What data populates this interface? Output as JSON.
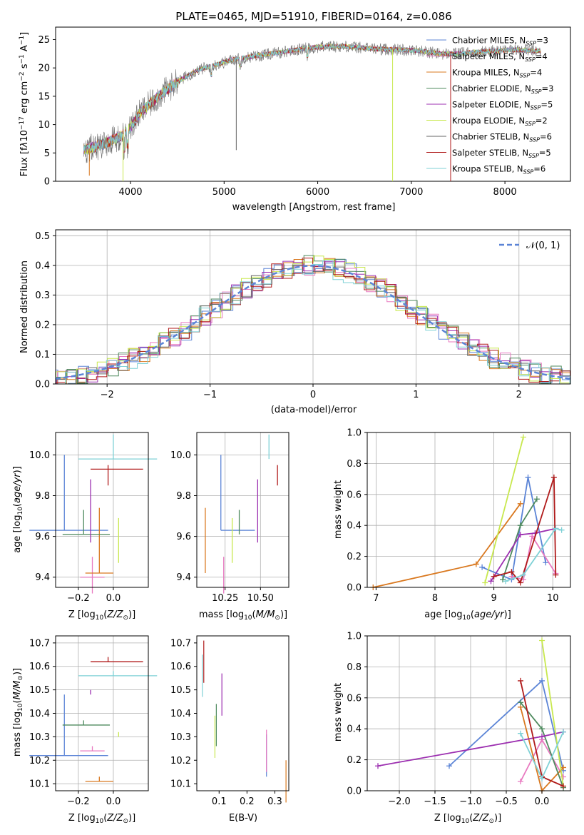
{
  "chart_data": [
    {
      "id": "spectrum",
      "type": "line",
      "title": "PLATE=0465, MJD=51910, FIBERID=0164, z=0.086",
      "xlabel": "wavelength [Angstrom, rest frame]",
      "ylabel": "Flux [fλ10⁻¹⁷ erg cm⁻² s⁻¹ A⁻¹]",
      "xlim": [
        3200,
        8700
      ],
      "ylim": [
        0,
        27.2
      ],
      "xticks": [
        4000,
        5000,
        6000,
        7000,
        8000
      ],
      "yticks": [
        0,
        5,
        10,
        15,
        20,
        25
      ],
      "grid": false,
      "legend_position": "top-right",
      "series": [
        {
          "name": "Chabrier MILES, N_SSP=3",
          "color": "#5b84d6"
        },
        {
          "name": "Salpeter MILES, N_SSP=4",
          "color": "#e879c0"
        },
        {
          "name": "Kroupa MILES, N_SSP=4",
          "color": "#d9781f"
        },
        {
          "name": "Chabrier ELODIE, N_SSP=3",
          "color": "#4e8a5e"
        },
        {
          "name": "Salpeter ELODIE, N_SSP=5",
          "color": "#9c2fb0"
        },
        {
          "name": "Kroupa ELODIE, N_SSP=2",
          "color": "#c8e84e"
        },
        {
          "name": "Chabrier STELIB, N_SSP=6",
          "color": "#666666"
        },
        {
          "name": "Salpeter STELIB, N_SSP=5",
          "color": "#b01a1a"
        },
        {
          "name": "Kroupa STELIB, N_SSP=6",
          "color": "#7fd1d6"
        }
      ],
      "continuum": {
        "x": [
          3500,
          3700,
          3900,
          4000,
          4100,
          4300,
          4500,
          4700,
          4900,
          5100,
          5300,
          5500,
          5700,
          5900,
          6100,
          6300,
          6500,
          6700,
          6900,
          7100,
          7300,
          7500,
          7700,
          7900,
          8100,
          8300
        ],
        "y": [
          5.5,
          6.5,
          8.0,
          9.5,
          12.0,
          15.0,
          17.5,
          19.5,
          20.5,
          21.5,
          22.0,
          22.5,
          23.0,
          23.5,
          23.8,
          23.8,
          23.5,
          23.3,
          23.2,
          23.0,
          22.5,
          22.5,
          22.8,
          23.0,
          23.2,
          23.0
        ]
      }
    },
    {
      "id": "residuals",
      "type": "histogram",
      "xlabel": "(data-model)/error",
      "ylabel": "Normed distribution",
      "xlim": [
        -2.5,
        2.5
      ],
      "ylim": [
        0,
        0.52
      ],
      "xticks": [
        -2,
        -1,
        0,
        1,
        2
      ],
      "yticks": [
        0.0,
        0.1,
        0.2,
        0.3,
        0.4,
        0.5
      ],
      "grid": true,
      "legend_position": "top-right",
      "legend": "𝒩(0, 1)"
    },
    {
      "id": "age-vs-Z",
      "type": "scatter",
      "xlabel": "Z [log₁₀(Z/Z☉)]",
      "ylabel": "age  [log₁₀(age/yr)]",
      "xlim": [
        -0.33,
        0.2
      ],
      "ylim": [
        9.35,
        10.11
      ],
      "xticks": [
        -0.2,
        0.0
      ],
      "yticks": [
        9.4,
        9.6,
        9.8,
        10.0
      ],
      "grid": true
    },
    {
      "id": "age-vs-mass",
      "type": "scatter",
      "xlabel": "mass [log₁₀(M/M☉)]",
      "xlim": [
        10.05,
        10.7
      ],
      "ylim": [
        9.35,
        10.11
      ],
      "xticks": [
        10.25,
        10.5
      ],
      "yticks": [
        9.4,
        9.6,
        9.8,
        10.0
      ],
      "grid": true
    },
    {
      "id": "weight-vs-age",
      "type": "line",
      "xlabel": "age  [log₁₀(age/yr)]",
      "ylabel": "mass weight",
      "xlim": [
        6.85,
        10.3
      ],
      "ylim": [
        0,
        1.0
      ],
      "xticks": [
        7,
        8,
        9,
        10
      ],
      "yticks": [
        0.0,
        0.2,
        0.4,
        0.6,
        0.8,
        1.0
      ],
      "grid": true
    },
    {
      "id": "mass-vs-Z",
      "type": "scatter",
      "xlabel": "Z [log₁₀(Z/Z☉)]",
      "ylabel": "mass [log₁₀(M/M☉)]",
      "xlim": [
        -0.33,
        0.2
      ],
      "ylim": [
        10.07,
        10.73
      ],
      "xticks": [
        -0.2,
        0.0
      ],
      "yticks": [
        10.1,
        10.2,
        10.3,
        10.4,
        10.5,
        10.6,
        10.7
      ],
      "grid": true
    },
    {
      "id": "mass-vs-ebv",
      "type": "scatter",
      "xlabel": "E(B-V)",
      "xlim": [
        0.02,
        0.35
      ],
      "ylim": [
        10.07,
        10.73
      ],
      "xticks": [
        0.1,
        0.2,
        0.3
      ],
      "yticks": [
        10.1,
        10.2,
        10.3,
        10.4,
        10.5,
        10.6,
        10.7
      ],
      "grid": false
    },
    {
      "id": "weight-vs-Z",
      "type": "line",
      "xlabel": "Z [log₁₀(Z/Z☉)]",
      "ylabel": "mass weight",
      "xlim": [
        -2.45,
        0.4
      ],
      "ylim": [
        0,
        1.0
      ],
      "xticks": [
        -2.0,
        -1.5,
        -1.0,
        -0.5,
        0.0
      ],
      "yticks": [
        0.0,
        0.2,
        0.4,
        0.6,
        0.8,
        1.0
      ],
      "grid": true
    }
  ],
  "models": [
    {
      "color": "#5b84d6",
      "Z": [
        -0.28,
        0.2,
        0.05
      ],
      "age": [
        9.63,
        0.0,
        0.35
      ],
      "mass": [
        10.22,
        0.0,
        0.24
      ],
      "ebv": 0.27,
      "weight_age": [
        [
          8.8,
          0.13
        ],
        [
          9.3,
          0.05
        ],
        [
          9.58,
          0.71
        ],
        [
          9.88,
          0.16
        ]
      ],
      "weight_Z": [
        [
          -1.3,
          0.16
        ],
        [
          0.0,
          0.71
        ],
        [
          0.3,
          0.13
        ]
      ]
    },
    {
      "color": "#e879c0",
      "Z": [
        -0.12,
        0.07,
        0.0
      ],
      "age": [
        9.4,
        0.08,
        0.08
      ],
      "mass": [
        10.24,
        0.0,
        0.0
      ],
      "ebv": 0.27,
      "weight_age": [
        [
          9.3,
          0.07
        ],
        [
          9.5,
          0.05
        ],
        [
          9.65,
          0.33
        ],
        [
          10.05,
          0.09
        ]
      ],
      "weight_Z": [
        [
          -0.3,
          0.06
        ],
        [
          0.0,
          0.33
        ],
        [
          0.3,
          0.09
        ]
      ]
    },
    {
      "color": "#d9781f",
      "Z": [
        -0.08,
        0.08,
        0.0
      ],
      "age": [
        9.42,
        0.0,
        0.3
      ],
      "mass": [
        10.11,
        0.0,
        0.0
      ],
      "ebv": 0.34,
      "weight_age": [
        [
          6.95,
          0.0
        ],
        [
          8.7,
          0.15
        ],
        [
          9.45,
          0.54
        ]
      ],
      "weight_Z": [
        [
          -0.3,
          0.54
        ],
        [
          0.0,
          0.0
        ],
        [
          0.3,
          0.15
        ]
      ]
    },
    {
      "color": "#4e8a5e",
      "Z": [
        -0.17,
        0.12,
        0.03
      ],
      "age": [
        9.61,
        0.0,
        0.1
      ],
      "mass": [
        10.35,
        0.0,
        0.0
      ],
      "ebv": 0.09,
      "weight_age": [
        [
          9.15,
          0.05
        ],
        [
          9.45,
          0.4
        ],
        [
          9.73,
          0.57
        ]
      ],
      "weight_Z": [
        [
          -0.3,
          0.57
        ],
        [
          0.0,
          0.4
        ],
        [
          0.3,
          0.02
        ]
      ]
    },
    {
      "color": "#9c2fb0",
      "Z": [
        -0.13,
        0.0,
        0.0
      ],
      "age": [
        9.69,
        0.12,
        0.17
      ],
      "mass": [
        10.48,
        0.0,
        0.0
      ],
      "ebv": 0.11,
      "weight_age": [
        [
          8.95,
          0.04
        ],
        [
          9.45,
          0.34
        ],
        [
          9.7,
          0.35
        ],
        [
          10.05,
          0.38
        ]
      ],
      "weight_Z": [
        [
          -2.3,
          0.16
        ],
        [
          0.0,
          0.35
        ],
        [
          0.3,
          0.38
        ]
      ]
    },
    {
      "color": "#c8e84e",
      "Z": [
        0.03,
        0.0,
        0.0
      ],
      "age": [
        9.47,
        0.0,
        0.2
      ],
      "mass": [
        10.3,
        0.0,
        0.0
      ],
      "ebv": 0.085,
      "weight_age": [
        [
          8.85,
          0.03
        ],
        [
          9.5,
          0.97
        ]
      ],
      "weight_Z": [
        [
          0.0,
          0.97
        ],
        [
          0.3,
          0.03
        ]
      ]
    },
    {
      "color": "#666666",
      "Z": [
        -0.1,
        0.15,
        0.0
      ],
      "age": [
        9.6,
        0.0,
        0.0
      ],
      "mass": [
        10.28,
        0.0,
        0.0
      ],
      "ebv": 0.1,
      "weight_age": [],
      "weight_Z": []
    },
    {
      "color": "#b01a1a",
      "Z": [
        -0.03,
        0.1,
        0.1
      ],
      "age": [
        9.93,
        0.08,
        0.0
      ],
      "mass": [
        10.62,
        0.0,
        0.0
      ],
      "ebv": 0.045,
      "weight_age": [
        [
          9.0,
          0.07
        ],
        [
          9.3,
          0.1
        ],
        [
          9.45,
          0.03
        ],
        [
          10.02,
          0.71
        ],
        [
          10.05,
          0.08
        ]
      ],
      "weight_Z": [
        [
          -0.3,
          0.71
        ],
        [
          0.0,
          0.09
        ],
        [
          0.3,
          0.03
        ]
      ]
    },
    {
      "color": "#7fd1d6",
      "Z": [
        0.0,
        0.2,
        0.05
      ],
      "age": [
        9.98,
        0.0,
        0.1
      ],
      "mass": [
        10.56,
        0.0,
        0.0
      ],
      "ebv": 0.04,
      "weight_age": [
        [
          9.2,
          0.04
        ],
        [
          9.5,
          0.08
        ],
        [
          10.05,
          0.38
        ],
        [
          10.15,
          0.37
        ]
      ],
      "weight_Z": [
        [
          -0.3,
          0.37
        ],
        [
          0.0,
          0.08
        ],
        [
          0.3,
          0.38
        ]
      ]
    }
  ]
}
